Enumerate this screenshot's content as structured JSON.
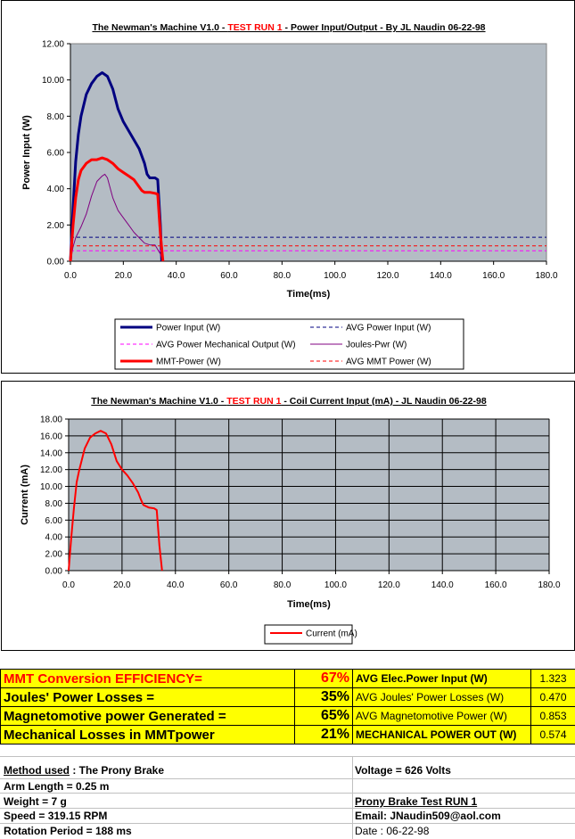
{
  "chart_data": [
    {
      "type": "line",
      "title_parts": [
        "The Newman's Machine V1.0 - ",
        "TEST RUN 1",
        " - Power Input/Output - By JL Naudin 06-22-98"
      ],
      "xlabel": "Time(ms)",
      "ylabel": "Power Input (W)",
      "xlim": [
        0,
        180
      ],
      "ylim": [
        0,
        12
      ],
      "xticks": [
        "0.0",
        "20.0",
        "40.0",
        "60.0",
        "80.0",
        "100.0",
        "120.0",
        "140.0",
        "160.0",
        "180.0"
      ],
      "yticks": [
        "0.00",
        "2.00",
        "4.00",
        "6.00",
        "8.00",
        "10.00",
        "12.00"
      ],
      "grid": false,
      "legend_position": "bottom",
      "background_color": "#b4bcc4",
      "series": [
        {
          "name": "Power Input (W)",
          "color": "#000080",
          "style": "solid",
          "width": 3,
          "x": [
            0,
            1,
            2,
            3,
            4,
            6,
            8,
            10,
            12,
            14,
            16,
            18,
            20,
            22,
            24,
            26,
            28,
            29,
            30,
            32,
            33,
            34,
            34.5
          ],
          "y": [
            0,
            3.0,
            5.5,
            7.0,
            8.0,
            9.2,
            9.8,
            10.2,
            10.4,
            10.2,
            9.5,
            8.4,
            7.7,
            7.2,
            6.7,
            6.2,
            5.4,
            4.8,
            4.6,
            4.6,
            4.5,
            2.0,
            0
          ]
        },
        {
          "name": "AVG Power Input (W)",
          "color": "#000080",
          "style": "dashed",
          "width": 1,
          "x": [
            0,
            180
          ],
          "y": [
            1.323,
            1.323
          ]
        },
        {
          "name": "AVG Power Mechanical Output (W)",
          "color": "#ff00ff",
          "style": "dashed",
          "width": 1,
          "x": [
            0,
            180
          ],
          "y": [
            0.574,
            0.574
          ]
        },
        {
          "name": "Joules-Pwr (W)",
          "color": "#800080",
          "style": "solid",
          "width": 1,
          "x": [
            0,
            1,
            2,
            4,
            6,
            8,
            10,
            12,
            13,
            14,
            16,
            18,
            20,
            22,
            24,
            26,
            28,
            30,
            32,
            34,
            35
          ],
          "y": [
            0,
            0.8,
            1.3,
            1.9,
            2.6,
            3.6,
            4.4,
            4.7,
            4.8,
            4.6,
            3.5,
            2.8,
            2.4,
            2.0,
            1.6,
            1.3,
            1.0,
            0.9,
            0.9,
            0.4,
            0
          ]
        },
        {
          "name": "MMT-Power (W)",
          "color": "#ff0000",
          "style": "solid",
          "width": 3,
          "x": [
            0,
            1,
            2,
            3,
            4,
            6,
            8,
            10,
            12,
            14,
            16,
            18,
            20,
            22,
            24,
            26,
            27,
            28,
            30,
            32,
            33,
            34,
            35
          ],
          "y": [
            0,
            2.0,
            3.5,
            4.5,
            5.0,
            5.4,
            5.6,
            5.6,
            5.7,
            5.6,
            5.4,
            5.1,
            4.9,
            4.7,
            4.5,
            4.1,
            3.9,
            3.8,
            3.8,
            3.75,
            3.7,
            1.5,
            0
          ]
        },
        {
          "name": "AVG MMT Power (W)",
          "color": "#ff0000",
          "style": "dashed",
          "width": 1,
          "x": [
            0,
            180
          ],
          "y": [
            0.853,
            0.853
          ]
        }
      ]
    },
    {
      "type": "line",
      "title_parts": [
        "The Newman's Machine V1.0 - ",
        "TEST RUN 1",
        " - Coil Current Input (mA) - JL Naudin 06-22-98"
      ],
      "xlabel": "Time(ms)",
      "ylabel": "Current (mA)",
      "xlim": [
        0,
        180
      ],
      "ylim": [
        0,
        18
      ],
      "xticks": [
        "0.0",
        "20.0",
        "40.0",
        "60.0",
        "80.0",
        "100.0",
        "120.0",
        "140.0",
        "160.0",
        "180.0"
      ],
      "yticks": [
        "0.00",
        "2.00",
        "4.00",
        "6.00",
        "8.00",
        "10.00",
        "12.00",
        "14.00",
        "16.00",
        "18.00"
      ],
      "grid": true,
      "legend_position": "bottom",
      "background_color": "#b4bcc4",
      "series": [
        {
          "name": "Current (mA)",
          "color": "#ff0000",
          "style": "solid",
          "width": 2,
          "x": [
            0,
            1,
            2,
            3,
            4,
            6,
            8,
            10,
            12,
            14,
            16,
            18,
            20,
            22,
            24,
            26,
            27,
            28,
            30,
            32,
            33,
            34,
            35
          ],
          "y": [
            0,
            4.0,
            7.5,
            10.5,
            12.0,
            14.5,
            15.8,
            16.3,
            16.6,
            16.3,
            15.0,
            13.0,
            12.0,
            11.3,
            10.4,
            9.3,
            8.5,
            7.8,
            7.5,
            7.4,
            7.2,
            3.0,
            0
          ]
        }
      ]
    }
  ],
  "summary": {
    "efficiency_label": "MMT Conversion  EFFICIENCY=",
    "efficiency_value": "67%",
    "joules_label": "Joules' Power Losses =",
    "joules_value": "35%",
    "mag_label": "Magnetomotive power Generated =",
    "mag_value": "65%",
    "mech_label": "Mechanical Losses in MMTpower",
    "mech_value": "21%",
    "avg_elec_label": "AVG Elec.Power Input (W)",
    "avg_elec_value": "1.323",
    "avg_joules_label": "AVG Joules' Power Losses (W)",
    "avg_joules_value": "0.470",
    "avg_mag_label": "AVG Magnetomotive Power (W)",
    "avg_mag_value": "0.853",
    "mech_out_label": "MECHANICAL POWER OUT (W)",
    "mech_out_value": "0.574"
  },
  "info": {
    "method_label": "Method used",
    "method_value": " : The Prony Brake",
    "arm": "Arm Length = 0.25 m",
    "weight": "Weight = 7 g",
    "speed": "Speed = 319.15 RPM",
    "period": "Rotation Period = 188 ms",
    "voltage": "Voltage = 626 Volts",
    "test_run": "Prony Brake Test RUN 1",
    "email": "Email: JNaudin509@aol.com",
    "date": "Date : 06-22-98"
  }
}
